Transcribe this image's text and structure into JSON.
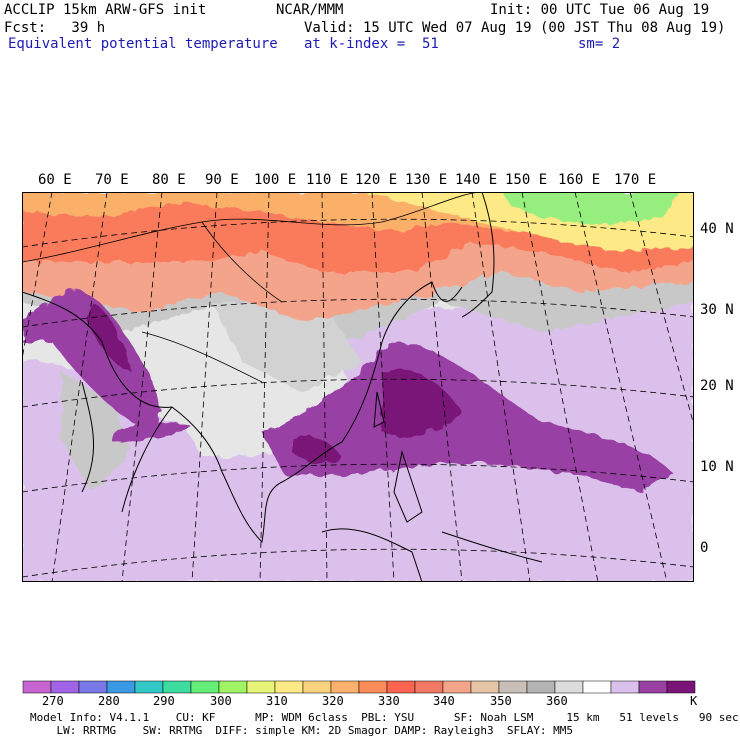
{
  "header": {
    "line1_left": "ACCLIP 15km ARW-GFS init",
    "line1_mid": "NCAR/MMM",
    "line1_right": "Init: 00 UTC Tue 06 Aug 19",
    "line2_left": "Fcst:   39 h",
    "line2_right": "Valid: 15 UTC Wed 07 Aug 19 (00 JST Thu 08 Aug 19)",
    "line3_field": "Equivalent potential temperature",
    "line3_level": "at k-index =  51",
    "line3_smooth": "sm= 2"
  },
  "map": {
    "lon_labels": [
      "60 E",
      "70 E",
      "80 E",
      "90 E",
      "100 E",
      "110 E",
      "120 E",
      "130 E",
      "140 E",
      "150 E",
      "160 E",
      "170 E"
    ],
    "lat_labels": [
      "40 N",
      "30 N",
      "20 N",
      "10 N",
      "0"
    ],
    "field": "theta-e shading",
    "colors": {
      "warm_band": "#fa7a5c",
      "orange": "#fbb06b",
      "yellow": "#fde985",
      "green": "#96ee7e",
      "salmon": "#f5a48c",
      "gray": "#c8c8c8",
      "light_gray": "#e6e6e6",
      "lilac": "#dcc0ec",
      "purple": "#9840a4",
      "dark_purple": "#7a1478"
    }
  },
  "colorbar": {
    "tick_labels": [
      "270",
      "280",
      "290",
      "300",
      "310",
      "320",
      "330",
      "340",
      "350",
      "360"
    ],
    "unit": "K",
    "colors": [
      "#c864d2",
      "#a264e6",
      "#7878e6",
      "#3a9ae6",
      "#32c8c8",
      "#3cdca0",
      "#64ee78",
      "#a0f464",
      "#e6f478",
      "#fde985",
      "#fbd27e",
      "#fbb06b",
      "#fa8c5a",
      "#fa6450",
      "#f07864",
      "#f5a48c",
      "#e6c4a6",
      "#c8c0b8",
      "#b4b4b4",
      "#dcdcdc",
      "#ffffff",
      "#dcc0ec",
      "#9840a4",
      "#7a1478"
    ]
  },
  "footer": {
    "line1": "Model Info: V4.1.1    CU: KF      MP: WDM 6class  PBL: YSU      SF: Noah LSM     15 km   51 levels   90 sec",
    "line2": "    LW: RRTMG    SW: RRTMG  DIFF: simple KM: 2D Smagor DAMP: Rayleigh3  SFLAY: MM5"
  }
}
